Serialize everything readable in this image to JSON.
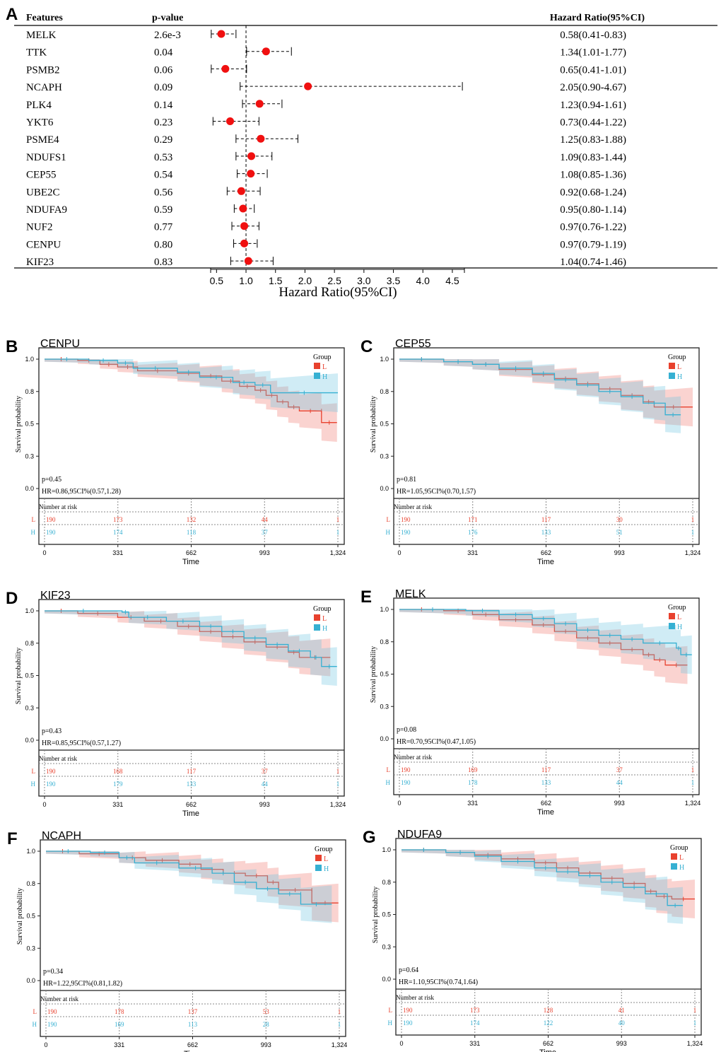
{
  "chart_data": [
    {
      "type": "forest",
      "panel": "A",
      "headers": {
        "features": "Features",
        "pvalue": "p-value",
        "hr": "Hazard Ratio(95%CI)"
      },
      "xlabel": "Hazard Ratio(95%CI)",
      "xticks": [
        "0.5",
        "1.0",
        "1.5",
        "2.0",
        "2.5",
        "3.0",
        "3.5",
        "4.0",
        "4.5"
      ],
      "xtick_values": [
        0.5,
        1.0,
        1.5,
        2.0,
        2.5,
        3.0,
        3.5,
        4.0,
        4.5
      ],
      "reference": 1.0,
      "rows": [
        {
          "feature": "MELK",
          "p": "2.6e-3",
          "hr": 0.58,
          "lo": 0.41,
          "hi": 0.83,
          "text": "0.58(0.41-0.83)"
        },
        {
          "feature": "TTK",
          "p": "0.04",
          "hr": 1.34,
          "lo": 1.01,
          "hi": 1.77,
          "text": "1.34(1.01-1.77)"
        },
        {
          "feature": "PSMB2",
          "p": "0.06",
          "hr": 0.65,
          "lo": 0.41,
          "hi": 1.01,
          "text": "0.65(0.41-1.01)"
        },
        {
          "feature": "NCAPH",
          "p": "0.09",
          "hr": 2.05,
          "lo": 0.9,
          "hi": 4.67,
          "text": "2.05(0.90-4.67)"
        },
        {
          "feature": "PLK4",
          "p": "0.14",
          "hr": 1.23,
          "lo": 0.94,
          "hi": 1.61,
          "text": "1.23(0.94-1.61)"
        },
        {
          "feature": "YKT6",
          "p": "0.23",
          "hr": 0.73,
          "lo": 0.44,
          "hi": 1.22,
          "text": "0.73(0.44-1.22)"
        },
        {
          "feature": "PSME4",
          "p": "0.29",
          "hr": 1.25,
          "lo": 0.83,
          "hi": 1.88,
          "text": "1.25(0.83-1.88)"
        },
        {
          "feature": "NDUFS1",
          "p": "0.53",
          "hr": 1.09,
          "lo": 0.83,
          "hi": 1.44,
          "text": "1.09(0.83-1.44)"
        },
        {
          "feature": "CEP55",
          "p": "0.54",
          "hr": 1.08,
          "lo": 0.85,
          "hi": 1.36,
          "text": "1.08(0.85-1.36)"
        },
        {
          "feature": "UBE2C",
          "p": "0.56",
          "hr": 0.92,
          "lo": 0.68,
          "hi": 1.24,
          "text": "0.92(0.68-1.24)"
        },
        {
          "feature": "NDUFA9",
          "p": "0.59",
          "hr": 0.95,
          "lo": 0.8,
          "hi": 1.14,
          "text": "0.95(0.80-1.14)"
        },
        {
          "feature": "NUF2",
          "p": "0.77",
          "hr": 0.97,
          "lo": 0.76,
          "hi": 1.22,
          "text": "0.97(0.76-1.22)"
        },
        {
          "feature": "CENPU",
          "p": "0.80",
          "hr": 0.97,
          "lo": 0.79,
          "hi": 1.19,
          "text": "0.97(0.79-1.19)"
        },
        {
          "feature": "KIF23",
          "p": "0.83",
          "hr": 1.04,
          "lo": 0.74,
          "hi": 1.46,
          "text": "1.04(0.74-1.46)"
        }
      ]
    },
    {
      "type": "km",
      "panel": "B",
      "title": "CENPU",
      "p": "p=0.45",
      "hr": "HR=0.86,95CI%(0.57,1.28)",
      "L": [
        [
          0,
          1
        ],
        [
          150,
          0.99
        ],
        [
          250,
          0.96
        ],
        [
          330,
          0.94
        ],
        [
          420,
          0.91
        ],
        [
          600,
          0.89
        ],
        [
          700,
          0.87
        ],
        [
          800,
          0.83
        ],
        [
          880,
          0.79
        ],
        [
          950,
          0.76
        ],
        [
          1000,
          0.72
        ],
        [
          1050,
          0.67
        ],
        [
          1100,
          0.63
        ],
        [
          1150,
          0.6
        ],
        [
          1250,
          0.6
        ],
        [
          1250,
          0.51
        ],
        [
          1320,
          0.51
        ]
      ],
      "H": [
        [
          0,
          1
        ],
        [
          200,
          0.99
        ],
        [
          330,
          0.97
        ],
        [
          400,
          0.93
        ],
        [
          600,
          0.9
        ],
        [
          700,
          0.86
        ],
        [
          850,
          0.82
        ],
        [
          950,
          0.8
        ],
        [
          1020,
          0.74
        ],
        [
          1324,
          0.74
        ]
      ],
      "risk_L": [
        "190",
        "173",
        "132",
        "44",
        "1"
      ],
      "risk_H": [
        "190",
        "174",
        "118",
        "37",
        "1"
      ]
    },
    {
      "type": "km",
      "panel": "C",
      "title": "CEP55",
      "p": "p=0.81",
      "hr": "HR=1.05,95CI%(0.70,1.57)",
      "L": [
        [
          0,
          1
        ],
        [
          200,
          0.98
        ],
        [
          330,
          0.96
        ],
        [
          450,
          0.92
        ],
        [
          600,
          0.88
        ],
        [
          700,
          0.85
        ],
        [
          800,
          0.81
        ],
        [
          900,
          0.77
        ],
        [
          1000,
          0.72
        ],
        [
          1100,
          0.67
        ],
        [
          1150,
          0.63
        ],
        [
          1324,
          0.63
        ]
      ],
      "H": [
        [
          0,
          1
        ],
        [
          200,
          0.98
        ],
        [
          330,
          0.96
        ],
        [
          450,
          0.93
        ],
        [
          600,
          0.89
        ],
        [
          700,
          0.84
        ],
        [
          800,
          0.8
        ],
        [
          900,
          0.75
        ],
        [
          1000,
          0.71
        ],
        [
          1100,
          0.66
        ],
        [
          1200,
          0.6
        ],
        [
          1200,
          0.57
        ],
        [
          1270,
          0.57
        ]
      ],
      "risk_L": [
        "190",
        "171",
        "117",
        "30",
        "1"
      ],
      "risk_H": [
        "190",
        "176",
        "133",
        "51",
        "1"
      ]
    },
    {
      "type": "km",
      "panel": "D",
      "title": "KIF23",
      "p": "p=0.43",
      "hr": "HR=0.85,95CI%(0.57,1.27)",
      "L": [
        [
          0,
          1
        ],
        [
          150,
          0.98
        ],
        [
          330,
          0.95
        ],
        [
          450,
          0.92
        ],
        [
          600,
          0.88
        ],
        [
          700,
          0.84
        ],
        [
          800,
          0.8
        ],
        [
          900,
          0.76
        ],
        [
          1000,
          0.72
        ],
        [
          1100,
          0.68
        ],
        [
          1150,
          0.64
        ],
        [
          1290,
          0.64
        ]
      ],
      "H": [
        [
          0,
          1
        ],
        [
          350,
          0.99
        ],
        [
          380,
          0.95
        ],
        [
          550,
          0.92
        ],
        [
          700,
          0.88
        ],
        [
          800,
          0.84
        ],
        [
          900,
          0.79
        ],
        [
          1000,
          0.74
        ],
        [
          1100,
          0.69
        ],
        [
          1200,
          0.64
        ],
        [
          1250,
          0.57
        ],
        [
          1320,
          0.57
        ]
      ],
      "risk_L": [
        "190",
        "168",
        "117",
        "37",
        "1"
      ],
      "risk_H": [
        "190",
        "179",
        "133",
        "44",
        "1"
      ]
    },
    {
      "type": "km",
      "panel": "E",
      "title": "MELK",
      "p": "p=0.08",
      "hr": "HR=0.70,95CI%(0.47,1.05)",
      "L": [
        [
          0,
          1
        ],
        [
          200,
          0.99
        ],
        [
          330,
          0.96
        ],
        [
          450,
          0.92
        ],
        [
          600,
          0.88
        ],
        [
          700,
          0.83
        ],
        [
          800,
          0.78
        ],
        [
          900,
          0.74
        ],
        [
          1000,
          0.69
        ],
        [
          1100,
          0.65
        ],
        [
          1150,
          0.61
        ],
        [
          1200,
          0.57
        ],
        [
          1300,
          0.57
        ]
      ],
      "H": [
        [
          0,
          1
        ],
        [
          300,
          0.99
        ],
        [
          450,
          0.96
        ],
        [
          600,
          0.93
        ],
        [
          700,
          0.89
        ],
        [
          800,
          0.84
        ],
        [
          900,
          0.8
        ],
        [
          1000,
          0.77
        ],
        [
          1100,
          0.74
        ],
        [
          1250,
          0.7
        ],
        [
          1270,
          0.65
        ],
        [
          1320,
          0.65
        ]
      ],
      "risk_L": [
        "190",
        "169",
        "117",
        "37",
        "1"
      ],
      "risk_H": [
        "190",
        "178",
        "133",
        "44",
        "1"
      ]
    },
    {
      "type": "km",
      "panel": "F",
      "title": "NCAPH",
      "p": "p=0.34",
      "hr": "HR=1.22,95CI%(0.81,1.82)",
      "L": [
        [
          0,
          1
        ],
        [
          150,
          0.98
        ],
        [
          330,
          0.95
        ],
        [
          450,
          0.93
        ],
        [
          600,
          0.9
        ],
        [
          700,
          0.86
        ],
        [
          800,
          0.83
        ],
        [
          900,
          0.81
        ],
        [
          1000,
          0.76
        ],
        [
          1050,
          0.7
        ],
        [
          1200,
          0.7
        ],
        [
          1200,
          0.6
        ],
        [
          1320,
          0.6
        ]
      ],
      "H": [
        [
          0,
          1
        ],
        [
          200,
          0.99
        ],
        [
          330,
          0.95
        ],
        [
          400,
          0.91
        ],
        [
          600,
          0.87
        ],
        [
          750,
          0.83
        ],
        [
          850,
          0.76
        ],
        [
          950,
          0.71
        ],
        [
          1050,
          0.67
        ],
        [
          1150,
          0.67
        ],
        [
          1150,
          0.59
        ],
        [
          1290,
          0.59
        ]
      ],
      "risk_L": [
        "190",
        "178",
        "137",
        "53",
        "1"
      ],
      "risk_H": [
        "190",
        "169",
        "113",
        "28",
        "1"
      ]
    },
    {
      "type": "km",
      "panel": "G",
      "title": "NDUFA9",
      "p": "p=0.64",
      "hr": "HR=1.10,95CI%(0.74,1.64)",
      "L": [
        [
          0,
          1
        ],
        [
          200,
          0.98
        ],
        [
          330,
          0.96
        ],
        [
          450,
          0.93
        ],
        [
          600,
          0.9
        ],
        [
          700,
          0.86
        ],
        [
          800,
          0.82
        ],
        [
          900,
          0.78
        ],
        [
          1000,
          0.74
        ],
        [
          1100,
          0.68
        ],
        [
          1150,
          0.64
        ],
        [
          1220,
          0.62
        ],
        [
          1324,
          0.62
        ]
      ],
      "H": [
        [
          0,
          1
        ],
        [
          200,
          0.98
        ],
        [
          330,
          0.95
        ],
        [
          450,
          0.91
        ],
        [
          600,
          0.86
        ],
        [
          700,
          0.83
        ],
        [
          800,
          0.8
        ],
        [
          900,
          0.75
        ],
        [
          1000,
          0.71
        ],
        [
          1100,
          0.66
        ],
        [
          1200,
          0.6
        ],
        [
          1200,
          0.57
        ],
        [
          1270,
          0.57
        ]
      ],
      "risk_L": [
        "190",
        "173",
        "128",
        "41",
        "1"
      ],
      "risk_H": [
        "190",
        "174",
        "122",
        "40",
        "1"
      ]
    }
  ],
  "km_common": {
    "ylabel": "Survival probability",
    "xlabel": "Time",
    "yticks": [
      "1.0",
      "0.8",
      "0.5",
      "0.3",
      "0.0"
    ],
    "ytick_values": [
      1,
      0.75,
      0.5,
      0.25,
      0
    ],
    "xticks": [
      "0",
      "331",
      "662",
      "993",
      "1,324"
    ],
    "xtick_values": [
      0,
      331,
      662,
      993,
      1324
    ],
    "legend_title": "Group",
    "legend_L": "L",
    "legend_H": "H",
    "risk_title": "Number at risk",
    "color_L": "#e8412e",
    "color_H": "#36b0d2"
  }
}
